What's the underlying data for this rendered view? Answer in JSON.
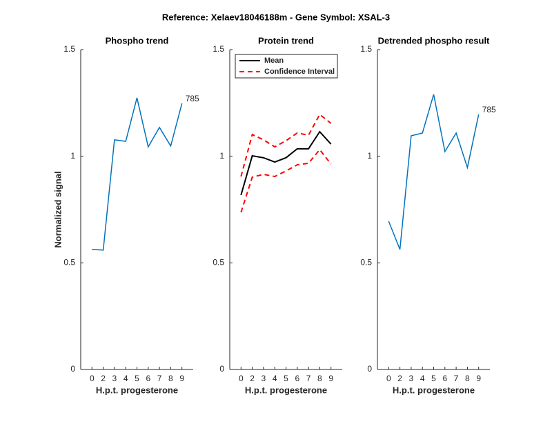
{
  "title": "Reference:  Xelaev18046188m - Gene Symbol:  XSAL-3",
  "chart_data": [
    {
      "type": "line",
      "title": "Phospho trend",
      "xlabel": "H.p.t. progesterone",
      "ylabel": "Normalized signal",
      "categories": [
        "0",
        "2",
        "3",
        "4",
        "5",
        "6",
        "7",
        "8",
        "9"
      ],
      "series": [
        {
          "color": "#0072bd",
          "values": [
            0.563,
            0.56,
            1.077,
            1.07,
            1.274,
            1.044,
            1.135,
            1.048,
            1.248
          ]
        }
      ],
      "annotation": "785",
      "ylim": [
        0,
        1.5
      ],
      "yticks": [
        0,
        0.5,
        1,
        1.5
      ]
    },
    {
      "type": "band-line",
      "title": "Protein trend",
      "xlabel": "H.p.t. progesterone",
      "categories": [
        "0",
        "2",
        "3",
        "4",
        "5",
        "6",
        "7",
        "8",
        "9"
      ],
      "series": [
        {
          "name": "Mean",
          "color": "#000000",
          "values": [
            0.818,
            1.002,
            0.993,
            0.973,
            0.993,
            1.035,
            1.035,
            1.115,
            1.057
          ]
        },
        {
          "name": "Confidence Interval",
          "color": "#ff0000",
          "dashed": true,
          "upper": [
            0.905,
            1.102,
            1.077,
            1.044,
            1.073,
            1.109,
            1.099,
            1.196,
            1.154
          ],
          "lower": [
            0.737,
            0.902,
            0.915,
            0.905,
            0.931,
            0.96,
            0.967,
            1.031,
            0.963
          ]
        }
      ],
      "legend": "northwest",
      "ylim": [
        0,
        1.5
      ],
      "yticks": [
        0,
        0.5,
        1,
        1.5
      ]
    },
    {
      "type": "line",
      "title": "Detrended phospho result",
      "xlabel": "H.p.t. progesterone",
      "categories": [
        "0",
        "2",
        "3",
        "4",
        "5",
        "6",
        "7",
        "8",
        "9"
      ],
      "series": [
        {
          "color": "#0072bd",
          "values": [
            0.695,
            0.563,
            1.096,
            1.109,
            1.29,
            1.022,
            1.109,
            0.947,
            1.196
          ]
        }
      ],
      "annotation": "785",
      "ylim": [
        0,
        1.5
      ],
      "yticks": [
        0,
        0.5,
        1,
        1.5
      ]
    }
  ]
}
